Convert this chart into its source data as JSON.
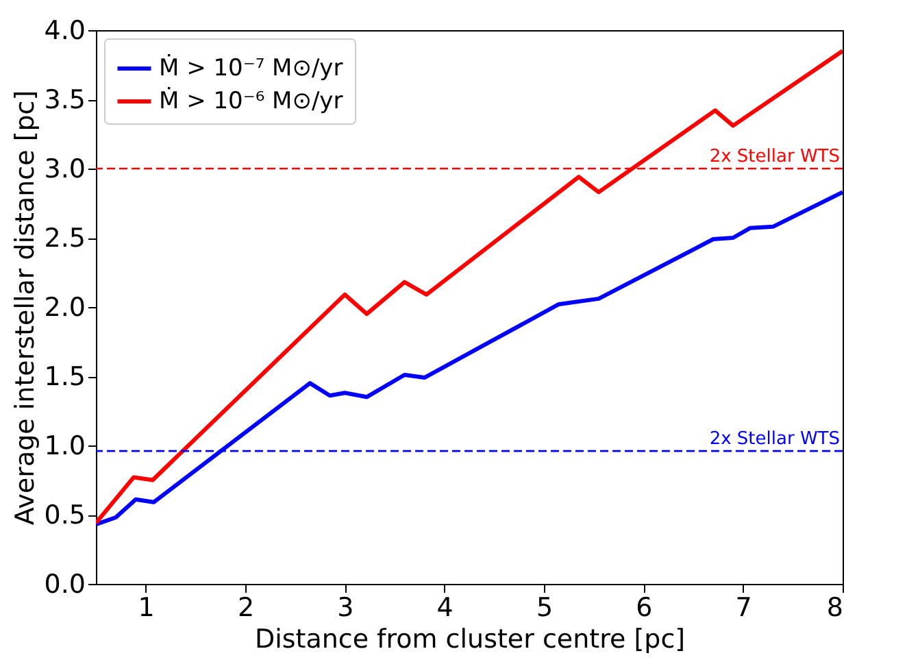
{
  "chart_data": {
    "type": "line",
    "xlabel": "Distance from cluster centre [pc]",
    "ylabel": "Average interstellar distance [pc]",
    "xlim": [
      0.5,
      8
    ],
    "xticks": [
      1,
      2,
      3,
      4,
      5,
      6,
      7,
      8
    ],
    "ylim": [
      0,
      4
    ],
    "yticks": [
      {
        "value": 0,
        "label": "0.0"
      },
      {
        "value": 0.5,
        "label": "0.5"
      },
      {
        "value": 1,
        "label": "1.0"
      },
      {
        "value": 1.5,
        "label": "1.5"
      },
      {
        "value": 2,
        "label": "2.0"
      },
      {
        "value": 2.5,
        "label": "2.5"
      },
      {
        "value": 3,
        "label": "3.0"
      },
      {
        "value": 3.5,
        "label": "3.5"
      },
      {
        "value": 4,
        "label": "4.0"
      }
    ],
    "grid": false,
    "legend": "top left",
    "line_style": "solid",
    "marker": "none",
    "series": [
      {
        "name": "Ṁ > 10⁻⁷ M⊙/yr",
        "color": "#0000ff",
        "x": [
          0.5,
          0.7,
          0.9,
          1.08,
          2.65,
          2.85,
          3.0,
          3.22,
          3.6,
          3.8,
          5.15,
          5.55,
          6.7,
          6.9,
          7.07,
          7.3,
          8
        ],
        "values": [
          0.43,
          0.48,
          0.61,
          0.59,
          1.45,
          1.36,
          1.38,
          1.35,
          1.51,
          1.49,
          2.02,
          2.06,
          2.49,
          2.5,
          2.57,
          2.58,
          2.83
        ]
      },
      {
        "name": "Ṁ > 10⁻⁶ M⊙/yr",
        "color": "#ff0000",
        "x": [
          0.5,
          0.88,
          1.07,
          3.0,
          3.22,
          3.6,
          3.82,
          5.35,
          5.55,
          6.72,
          6.9,
          8
        ],
        "values": [
          0.44,
          0.77,
          0.75,
          2.09,
          1.95,
          2.18,
          2.09,
          2.94,
          2.83,
          3.42,
          3.31,
          3.85
        ]
      }
    ],
    "ref_lines": [
      {
        "axis": "y",
        "value": 3.0,
        "label": "2x Stellar WTS",
        "color": "#ff0000",
        "line_style": "dashed"
      },
      {
        "axis": "y",
        "value": 0.96,
        "label": "2x Stellar WTS",
        "color": "#0000ff",
        "line_style": "dashed"
      }
    ]
  }
}
